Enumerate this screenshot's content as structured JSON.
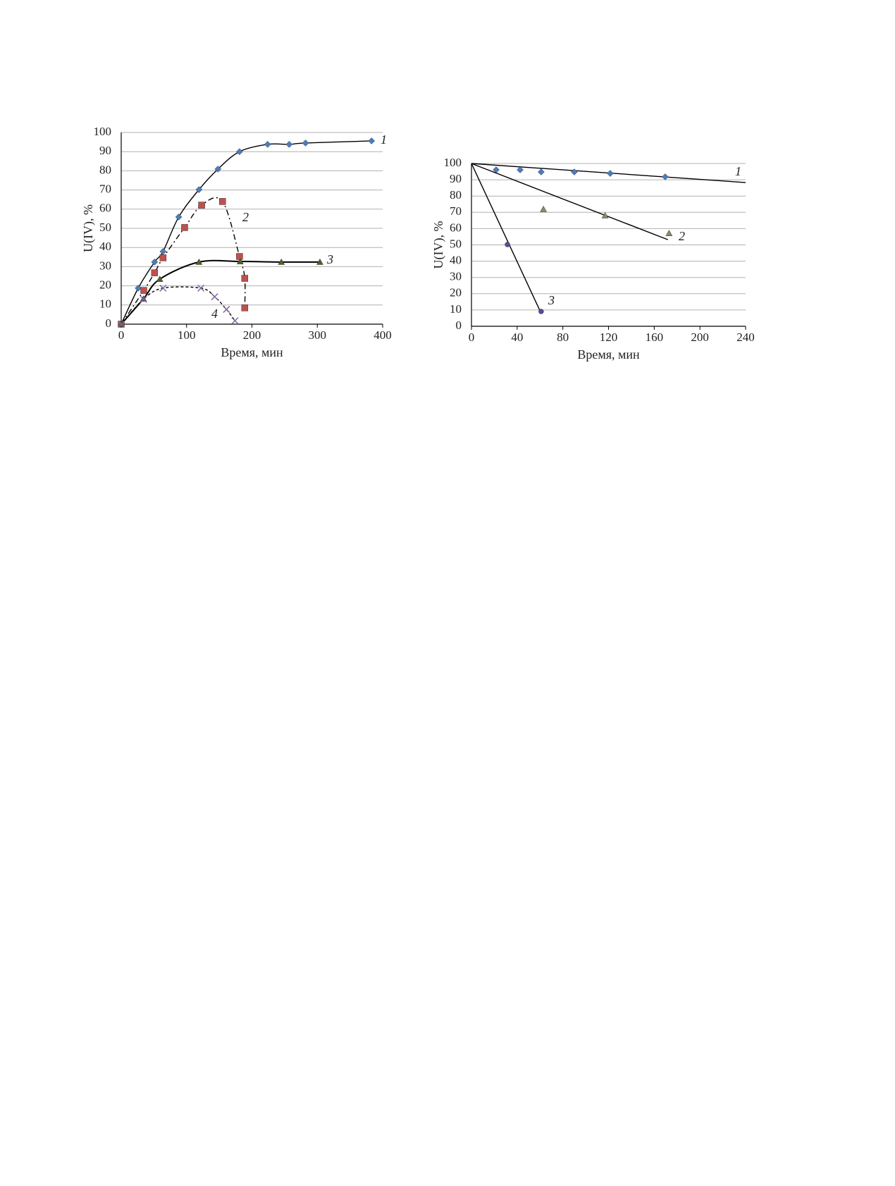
{
  "chart_data": [
    {
      "type": "scatter",
      "xlabel": "Время, мин",
      "ylabel": "U(IV), %",
      "xlim": [
        0,
        400
      ],
      "xticks": [
        0,
        100,
        200,
        300,
        400
      ],
      "ylim": [
        0,
        100
      ],
      "yticks": [
        0,
        10,
        20,
        30,
        40,
        50,
        60,
        70,
        80,
        90,
        100
      ],
      "grid": true,
      "series": [
        {
          "name": "1",
          "color": "#4a7ebf",
          "marker": "diamond",
          "line_style": "solid",
          "x": [
            0,
            26,
            51,
            64,
            88,
            119,
            148,
            181,
            224,
            257,
            282,
            383
          ],
          "values": [
            0,
            18.8,
            32.4,
            37.9,
            55.9,
            70.2,
            80.9,
            90,
            93.8,
            93.8,
            94.5,
            95.6
          ]
        },
        {
          "name": "2",
          "color": "#c0504d",
          "marker": "square",
          "line_style": "dashdot",
          "x": [
            0,
            34.5,
            51,
            64,
            97,
            123,
            155,
            181,
            189,
            189
          ],
          "values": [
            0,
            17.6,
            26.8,
            34.6,
            50.4,
            62.1,
            64,
            35.3,
            23.9,
            8.5
          ]
        },
        {
          "name": "3",
          "color": "#4f6228",
          "marker": "triangle",
          "line_style": "solid",
          "x": [
            0,
            34,
            59,
            119,
            182,
            245,
            304
          ],
          "values": [
            0,
            13.2,
            23.5,
            32.4,
            32.7,
            32.4,
            32.4
          ]
        },
        {
          "name": "4",
          "color": "#8064a2",
          "marker": "cross",
          "line_style": "dashed",
          "x": [
            0,
            34,
            64,
            122,
            143,
            161,
            174
          ],
          "values": [
            0,
            13,
            18.8,
            18.8,
            14.3,
            7.7,
            1.8
          ]
        }
      ]
    },
    {
      "type": "scatter",
      "xlabel": "Время, мин",
      "ylabel": "U(IV), %",
      "xlim": [
        0,
        240
      ],
      "xticks": [
        0,
        40,
        80,
        120,
        160,
        200,
        240
      ],
      "ylim": [
        0,
        100
      ],
      "yticks": [
        0,
        10,
        20,
        30,
        40,
        50,
        60,
        70,
        80,
        90,
        100
      ],
      "grid": true,
      "series": [
        {
          "name": "1",
          "color": "#4a7ebf",
          "marker": "diamond",
          "line_style": "solid",
          "x": [
            21.6,
            42.6,
            61,
            90,
            121.5,
            169.6
          ],
          "values": [
            96.1,
            96.1,
            94.8,
            94.8,
            93.9,
            91.8
          ],
          "line_x": [
            0,
            240
          ],
          "line_values": [
            100,
            88.3
          ]
        },
        {
          "name": "2",
          "color": "#8a8a6a",
          "marker": "triangle",
          "line_style": "solid",
          "x": [
            63,
            117,
            173
          ],
          "values": [
            71.9,
            68,
            57.1
          ],
          "line_x": [
            0,
            172
          ],
          "line_values": [
            100,
            53.2
          ]
        },
        {
          "name": "3",
          "color": "#5a4a9a",
          "marker": "circle",
          "line_style": "solid",
          "x": [
            31.5,
            61
          ],
          "values": [
            50.2,
            9.1
          ],
          "line_x": [
            0,
            61
          ],
          "line_values": [
            100,
            8
          ]
        }
      ]
    }
  ]
}
